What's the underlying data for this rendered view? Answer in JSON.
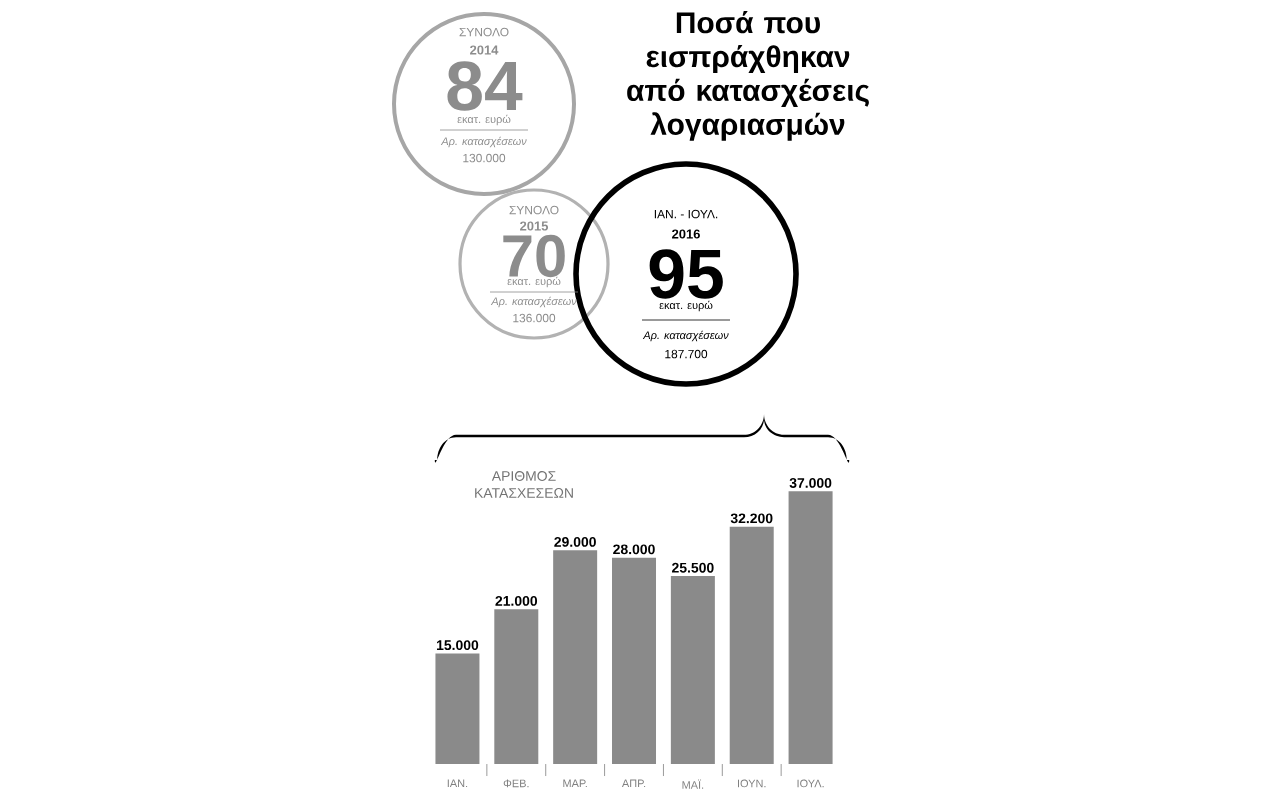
{
  "chart_data": {
    "type": "bar",
    "title": "Ποσά που εισπράχθηκαν από κατασχέσεις λογαριασμών",
    "ylabel": "ΑΡΙΘΜΟΣ ΚΑΤΑΣΧΕΣΕΩΝ",
    "categories": [
      "ΙΑΝ.",
      "ΦΕΒ.",
      "ΜΑΡ.",
      "ΑΠΡ.",
      "ΜΑΪ.",
      "ΙΟΥΝ.",
      "ΙΟΥΛ."
    ],
    "values": [
      15000,
      21000,
      29000,
      28000,
      25500,
      32200,
      37000
    ],
    "value_labels": [
      "15.000",
      "21.000",
      "29.000",
      "28.000",
      "25.500",
      "32.200",
      "37.000"
    ],
    "color": "#8a8a8a",
    "annotations": [
      "ΣΥΝΟΛΟ",
      "2014",
      "84",
      "εκατ. ευρώ",
      "Αρ. κατασχέσεων",
      "130.000",
      "ΣΥΝΟΛΟ",
      "2015",
      "70",
      "εκατ. ευρώ",
      "Αρ. κατασχέσεων",
      "136.000",
      "ΙΑΝ. - ΙΟΥΛ.",
      "2016",
      "95",
      "εκατ. ευρώ",
      "Αρ. κατασχέσεων",
      "187.700"
    ]
  }
}
